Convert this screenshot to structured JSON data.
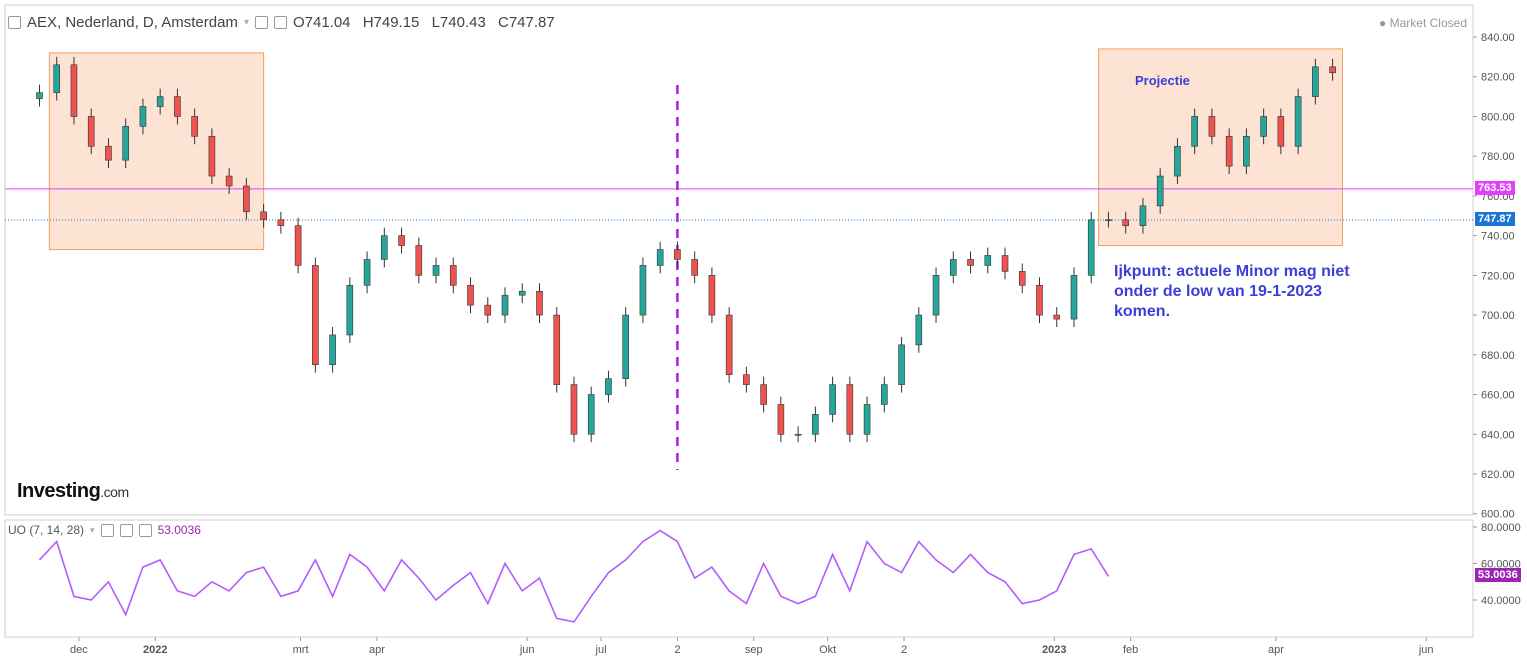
{
  "header": {
    "symbol": "AEX, Nederland, D, Amsterdam",
    "open": "O741.04",
    "high": "H749.15",
    "low": "L740.43",
    "close": "C747.87",
    "market_status": "Market Closed"
  },
  "indicator": {
    "label": "UO (7, 14, 28)",
    "value": "53.0036"
  },
  "logo": {
    "brand": "Investing",
    "domain": ".com"
  },
  "annotations": {
    "projection_label": "Projectie",
    "note": "Ijkpunt: actuele Minor mag niet onder de low van 19-1-2023 komen."
  },
  "price_badges": {
    "resistance": "763.53",
    "last": "747.87"
  },
  "colors": {
    "up": "#26a69a",
    "down": "#ef5350",
    "magenta_line": "#e040fb",
    "uo_line": "#b25cff",
    "box_fill": "#fde3d3",
    "box_border": "#f0a060",
    "text_blue": "#3d3dd8",
    "divider": "#a020f0",
    "last_badge": "#1976d2",
    "uo_badge": "#9c27b0"
  },
  "chart_data": [
    {
      "type": "candlestick",
      "title": "AEX, Nederland, D, Amsterdam",
      "y_ticks": [
        "600.00",
        "620.00",
        "640.00",
        "660.00",
        "680.00",
        "700.00",
        "720.00",
        "740.00",
        "760.00",
        "780.00",
        "800.00",
        "820.00",
        "840.00"
      ],
      "ylim": [
        600,
        845
      ],
      "x_ticks": [
        "dec",
        "2022",
        "mrt",
        "apr",
        "jun",
        "jul",
        "2",
        "sep",
        "Okt",
        "2",
        "2023",
        "feb",
        "apr",
        "jun"
      ],
      "horizontal_lines": [
        {
          "value": 763.53,
          "style": "solid",
          "color": "magenta"
        },
        {
          "value": 747.87,
          "style": "dotted",
          "color": "blue"
        }
      ],
      "boxes": [
        {
          "x_range": [
            "2021-11-19",
            "2022-02-14"
          ],
          "y_range": [
            733,
            832
          ]
        },
        {
          "x_range": [
            "2023-01-19",
            "2023-04-28"
          ],
          "y_range": [
            735,
            834
          ],
          "label": "Projectie"
        }
      ],
      "vertical_divider": {
        "x": "2022-08-01"
      },
      "series": [
        {
          "type": "close",
          "x": [
            "2021-11-15",
            "2021-11-22",
            "2021-11-29",
            "2021-12-06",
            "2021-12-13",
            "2021-12-20",
            "2021-12-27",
            "2022-01-03",
            "2022-01-10",
            "2022-01-17",
            "2022-01-24",
            "2022-01-31",
            "2022-02-07",
            "2022-02-14",
            "2022-02-21",
            "2022-02-28",
            "2022-03-07",
            "2022-03-14",
            "2022-03-21",
            "2022-03-28",
            "2022-04-04",
            "2022-04-11",
            "2022-04-18",
            "2022-04-25",
            "2022-05-02",
            "2022-05-09",
            "2022-05-16",
            "2022-05-23",
            "2022-05-30",
            "2022-06-06",
            "2022-06-13",
            "2022-06-20",
            "2022-06-27",
            "2022-07-04",
            "2022-07-11",
            "2022-07-18",
            "2022-07-25",
            "2022-08-01",
            "2022-08-08",
            "2022-08-15",
            "2022-08-22",
            "2022-08-29",
            "2022-09-05",
            "2022-09-12",
            "2022-09-19",
            "2022-09-26",
            "2022-10-03",
            "2022-10-10",
            "2022-10-17",
            "2022-10-24",
            "2022-10-31",
            "2022-11-07",
            "2022-11-14",
            "2022-11-21",
            "2022-11-28",
            "2022-12-05",
            "2022-12-12",
            "2022-12-19",
            "2022-12-26",
            "2023-01-02",
            "2023-01-09",
            "2023-01-16",
            "2023-01-23",
            "2023-01-30",
            "2023-02-06",
            "2023-02-13",
            "2023-02-20",
            "2023-02-27",
            "2023-03-06",
            "2023-03-13",
            "2023-03-20",
            "2023-03-27",
            "2023-04-03",
            "2023-04-10",
            "2023-04-17",
            "2023-04-24"
          ],
          "y": [
            812,
            826,
            800,
            785,
            778,
            795,
            805,
            810,
            800,
            790,
            770,
            765,
            752,
            748,
            745,
            725,
            675,
            690,
            715,
            728,
            740,
            735,
            720,
            725,
            715,
            705,
            700,
            710,
            712,
            700,
            665,
            640,
            660,
            668,
            700,
            725,
            733,
            728,
            720,
            700,
            670,
            665,
            655,
            640,
            640,
            650,
            665,
            640,
            655,
            665,
            685,
            700,
            720,
            728,
            725,
            730,
            722,
            715,
            700,
            698,
            720,
            748,
            748,
            745,
            755,
            770,
            785,
            800,
            790,
            775,
            790,
            800,
            785,
            810,
            825,
            822
          ]
        }
      ]
    },
    {
      "type": "line",
      "title": "UO (7, 14, 28)",
      "y_ticks": [
        "40.0000",
        "60.0000",
        "80.0000"
      ],
      "ylim": [
        25,
        83
      ],
      "series": [
        {
          "name": "UO (7, 14, 28)",
          "x": [
            "2021-11-15",
            "2021-11-22",
            "2021-11-29",
            "2021-12-06",
            "2021-12-13",
            "2021-12-20",
            "2021-12-27",
            "2022-01-03",
            "2022-01-10",
            "2022-01-17",
            "2022-01-24",
            "2022-01-31",
            "2022-02-07",
            "2022-02-14",
            "2022-02-21",
            "2022-02-28",
            "2022-03-07",
            "2022-03-14",
            "2022-03-21",
            "2022-03-28",
            "2022-04-04",
            "2022-04-11",
            "2022-04-18",
            "2022-04-25",
            "2022-05-02",
            "2022-05-09",
            "2022-05-16",
            "2022-05-23",
            "2022-05-30",
            "2022-06-06",
            "2022-06-13",
            "2022-06-20",
            "2022-06-27",
            "2022-07-04",
            "2022-07-11",
            "2022-07-18",
            "2022-07-25",
            "2022-08-01",
            "2022-08-08",
            "2022-08-15",
            "2022-08-22",
            "2022-08-29",
            "2022-09-05",
            "2022-09-12",
            "2022-09-19",
            "2022-09-26",
            "2022-10-03",
            "2022-10-10",
            "2022-10-17",
            "2022-10-24",
            "2022-10-31",
            "2022-11-07",
            "2022-11-14",
            "2022-11-21",
            "2022-11-28",
            "2022-12-05",
            "2022-12-12",
            "2022-12-19",
            "2022-12-26",
            "2023-01-02",
            "2023-01-09",
            "2023-01-16",
            "2023-01-23"
          ],
          "y": [
            62,
            72,
            42,
            40,
            50,
            32,
            58,
            62,
            45,
            42,
            50,
            45,
            55,
            58,
            42,
            45,
            62,
            42,
            65,
            58,
            45,
            62,
            52,
            40,
            48,
            55,
            38,
            60,
            45,
            52,
            30,
            28,
            42,
            55,
            62,
            72,
            78,
            72,
            52,
            58,
            45,
            38,
            60,
            42,
            38,
            42,
            65,
            45,
            72,
            60,
            55,
            72,
            62,
            55,
            65,
            55,
            50,
            38,
            40,
            45,
            65,
            68,
            53
          ]
        }
      ]
    }
  ]
}
